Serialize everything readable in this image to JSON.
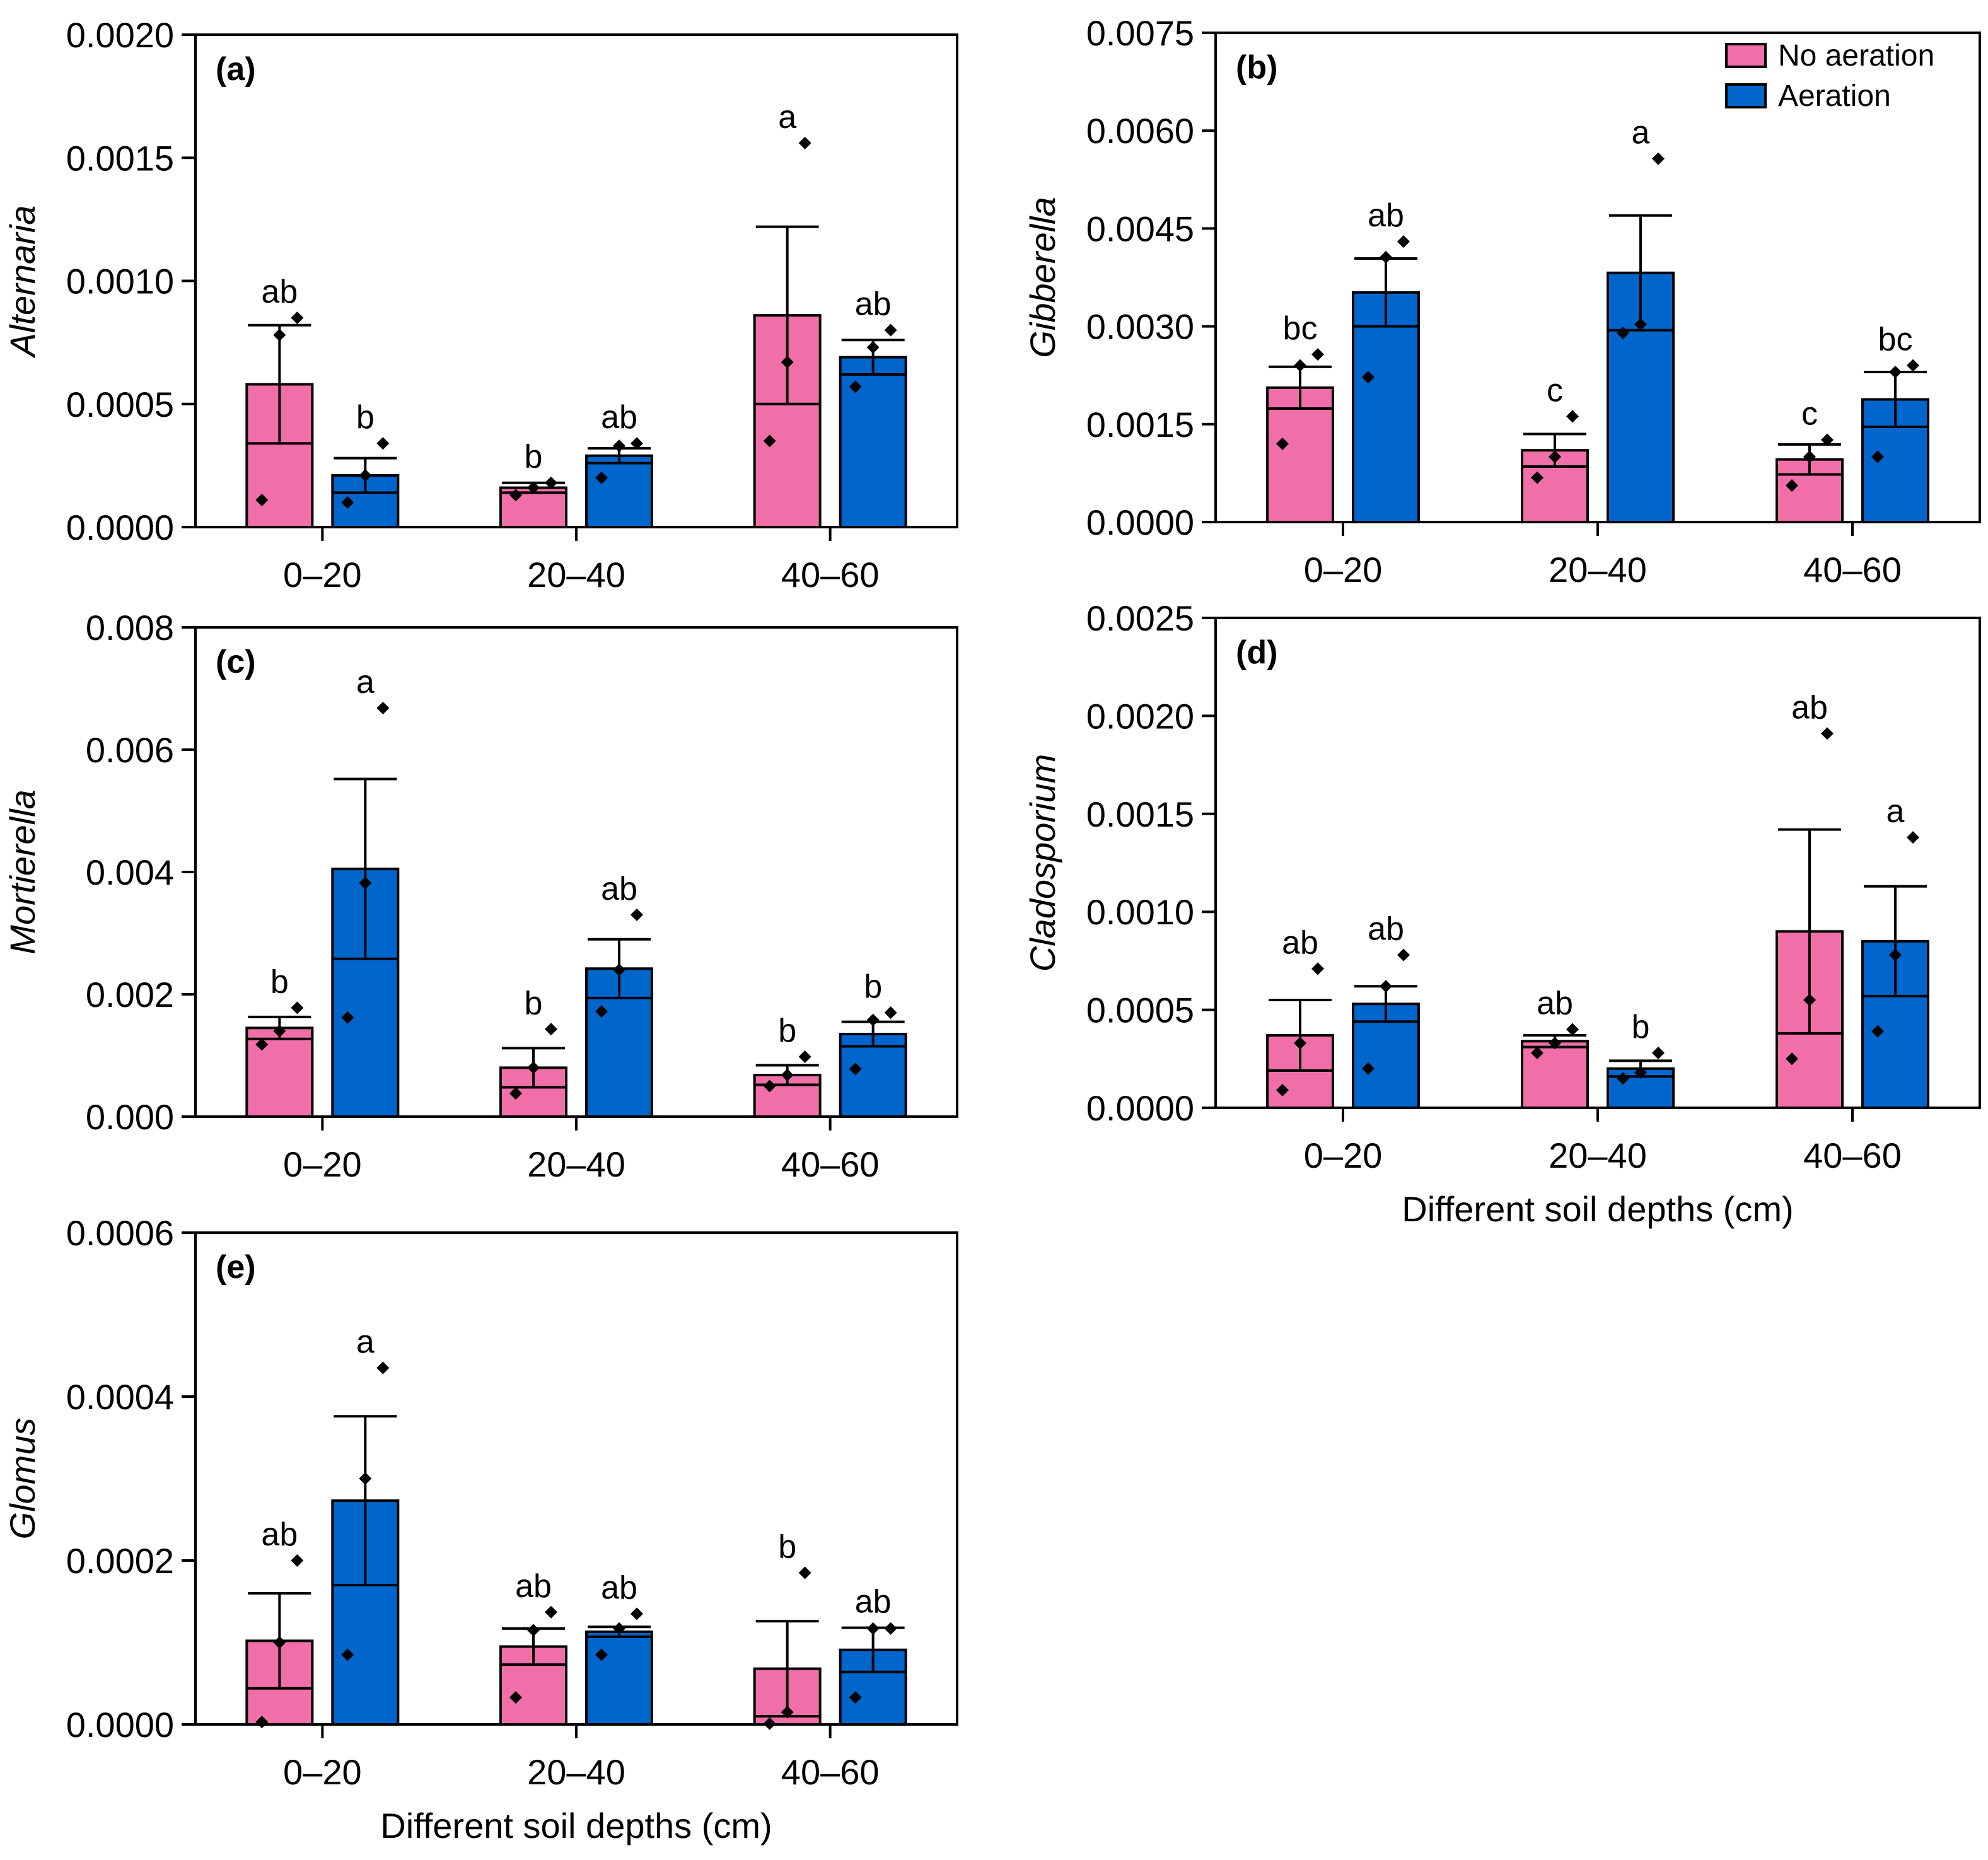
{
  "legend": [
    {
      "name": "No aeration",
      "color": "#f06fa8"
    },
    {
      "name": "Aeration",
      "color": "#0066cc"
    }
  ],
  "chart_data": [
    {
      "id": "a",
      "type": "bar",
      "panel_label": "(a)",
      "ylabel": "Alternaria",
      "xlabel": "",
      "categories": [
        "0–20",
        "20–40",
        "40–60"
      ],
      "ylim": [
        0,
        0.002
      ],
      "yticks": [
        "0.0000",
        "0.0005",
        "0.0010",
        "0.0015",
        "0.0020"
      ],
      "series": [
        {
          "name": "No aeration",
          "values": [
            0.00058,
            0.00016,
            0.00086
          ],
          "errors": [
            0.00024,
            2e-05,
            0.00036
          ],
          "points": [
            [
              0.00011,
              0.00078,
              0.00085
            ],
            [
              0.00013,
              0.00016,
              0.00018
            ],
            [
              0.00035,
              0.00067,
              0.00156
            ]
          ],
          "labels": [
            "ab",
            "b",
            "a"
          ]
        },
        {
          "name": "Aeration",
          "values": [
            0.00021,
            0.00029,
            0.00069
          ],
          "errors": [
            7e-05,
            3e-05,
            7e-05
          ],
          "points": [
            [
              0.0001,
              0.00021,
              0.00034
            ],
            [
              0.0002,
              0.00033,
              0.00034
            ],
            [
              0.00057,
              0.00073,
              0.0008
            ]
          ],
          "labels": [
            "b",
            "ab",
            "ab"
          ]
        }
      ]
    },
    {
      "id": "b",
      "type": "bar",
      "panel_label": "(b)",
      "ylabel": "Gibberella",
      "xlabel": "",
      "categories": [
        "0–20",
        "20–40",
        "40–60"
      ],
      "ylim": [
        0,
        0.0075
      ],
      "yticks": [
        "0.0000",
        "0.0015",
        "0.0030",
        "0.0045",
        "0.0060",
        "0.0075"
      ],
      "series": [
        {
          "name": "No aeration",
          "values": [
            0.00206,
            0.0011,
            0.00096
          ],
          "errors": [
            0.00032,
            0.00025,
            0.00023
          ],
          "points": [
            [
              0.0012,
              0.0024,
              0.00257
            ],
            [
              0.00068,
              0.001,
              0.00162
            ],
            [
              0.00056,
              0.001,
              0.00126
            ]
          ],
          "labels": [
            "bc",
            "c",
            "c"
          ]
        },
        {
          "name": "Aeration",
          "values": [
            0.00352,
            0.00382,
            0.00188
          ],
          "errors": [
            0.00052,
            0.00088,
            0.00042
          ],
          "points": [
            [
              0.00222,
              0.00406,
              0.0043
            ],
            [
              0.0029,
              0.00303,
              0.00557
            ],
            [
              0.001,
              0.0023,
              0.0024
            ]
          ],
          "labels": [
            "ab",
            "a",
            "bc"
          ]
        }
      ]
    },
    {
      "id": "c",
      "type": "bar",
      "panel_label": "(c)",
      "ylabel": "Mortierella",
      "xlabel": "",
      "categories": [
        "0–20",
        "20–40",
        "40–60"
      ],
      "ylim": [
        0,
        0.008
      ],
      "yticks": [
        "0.000",
        "0.002",
        "0.004",
        "0.006",
        "0.008"
      ],
      "series": [
        {
          "name": "No aeration",
          "values": [
            0.00145,
            0.0008,
            0.00068
          ],
          "errors": [
            0.00018,
            0.00032,
            0.00016
          ],
          "points": [
            [
              0.00118,
              0.0014,
              0.00178
            ],
            [
              0.00038,
              0.0008,
              0.00143
            ],
            [
              0.0005,
              0.00068,
              0.00098
            ]
          ],
          "labels": [
            "b",
            "b",
            "b"
          ]
        },
        {
          "name": "Aeration",
          "values": [
            0.00405,
            0.00242,
            0.00135
          ],
          "errors": [
            0.00147,
            0.00048,
            0.0002
          ],
          "points": [
            [
              0.00162,
              0.00382,
              0.00668
            ],
            [
              0.00172,
              0.0024,
              0.0033
            ],
            [
              0.00078,
              0.00158,
              0.0017
            ]
          ],
          "labels": [
            "a",
            "ab",
            "b"
          ]
        }
      ]
    },
    {
      "id": "d",
      "type": "bar",
      "panel_label": "(d)",
      "ylabel": "Cladosporium",
      "xlabel": "Different soil depths (cm)",
      "categories": [
        "0–20",
        "20–40",
        "40–60"
      ],
      "ylim": [
        0,
        0.0025
      ],
      "yticks": [
        "0.0000",
        "0.0005",
        "0.0010",
        "0.0015",
        "0.0020",
        "0.0025"
      ],
      "series": [
        {
          "name": "No aeration",
          "values": [
            0.00037,
            0.00034,
            0.0009
          ],
          "errors": [
            0.00018,
            3e-05,
            0.00052
          ],
          "points": [
            [
              9e-05,
              0.00033,
              0.00071
            ],
            [
              0.00028,
              0.00033,
              0.0004
            ],
            [
              0.00025,
              0.00055,
              0.00191
            ]
          ],
          "labels": [
            "ab",
            "ab",
            "ab"
          ]
        },
        {
          "name": "Aeration",
          "values": [
            0.00053,
            0.0002,
            0.00085
          ],
          "errors": [
            9e-05,
            4e-05,
            0.00028
          ],
          "points": [
            [
              0.0002,
              0.00062,
              0.00078
            ],
            [
              0.00015,
              0.00018,
              0.00028
            ],
            [
              0.00039,
              0.00078,
              0.00138
            ]
          ],
          "labels": [
            "ab",
            "b",
            "a"
          ]
        }
      ]
    },
    {
      "id": "e",
      "type": "bar",
      "panel_label": "(e)",
      "ylabel": "Glomus",
      "xlabel": "Different soil depths (cm)",
      "categories": [
        "0–20",
        "20–40",
        "40–60"
      ],
      "ylim": [
        0,
        0.0006
      ],
      "yticks": [
        "0.0000",
        "0.0002",
        "0.0004",
        "0.0006"
      ],
      "series": [
        {
          "name": "No aeration",
          "values": [
            0.000102,
            9.5e-05,
            6.8e-05
          ],
          "errors": [
            5.8e-05,
            2.2e-05,
            5.8e-05
          ],
          "points": [
            [
              3e-06,
              0.0001,
              0.0002
            ],
            [
              3.3e-05,
              0.000115,
              0.000137
            ],
            [
              1e-06,
              1.5e-05,
              0.000185
            ]
          ],
          "labels": [
            "ab",
            "ab",
            "b"
          ]
        },
        {
          "name": "Aeration",
          "values": [
            0.000273,
            0.000113,
            9.1e-05
          ],
          "errors": [
            0.000103,
            6e-06,
            2.7e-05
          ],
          "points": [
            [
              8.5e-05,
              0.0003,
              0.000435
            ],
            [
              8.5e-05,
              0.000117,
              0.000135
            ],
            [
              3.3e-05,
              0.000117,
              0.000117
            ]
          ],
          "labels": [
            "a",
            "ab",
            "ab"
          ]
        }
      ]
    }
  ]
}
